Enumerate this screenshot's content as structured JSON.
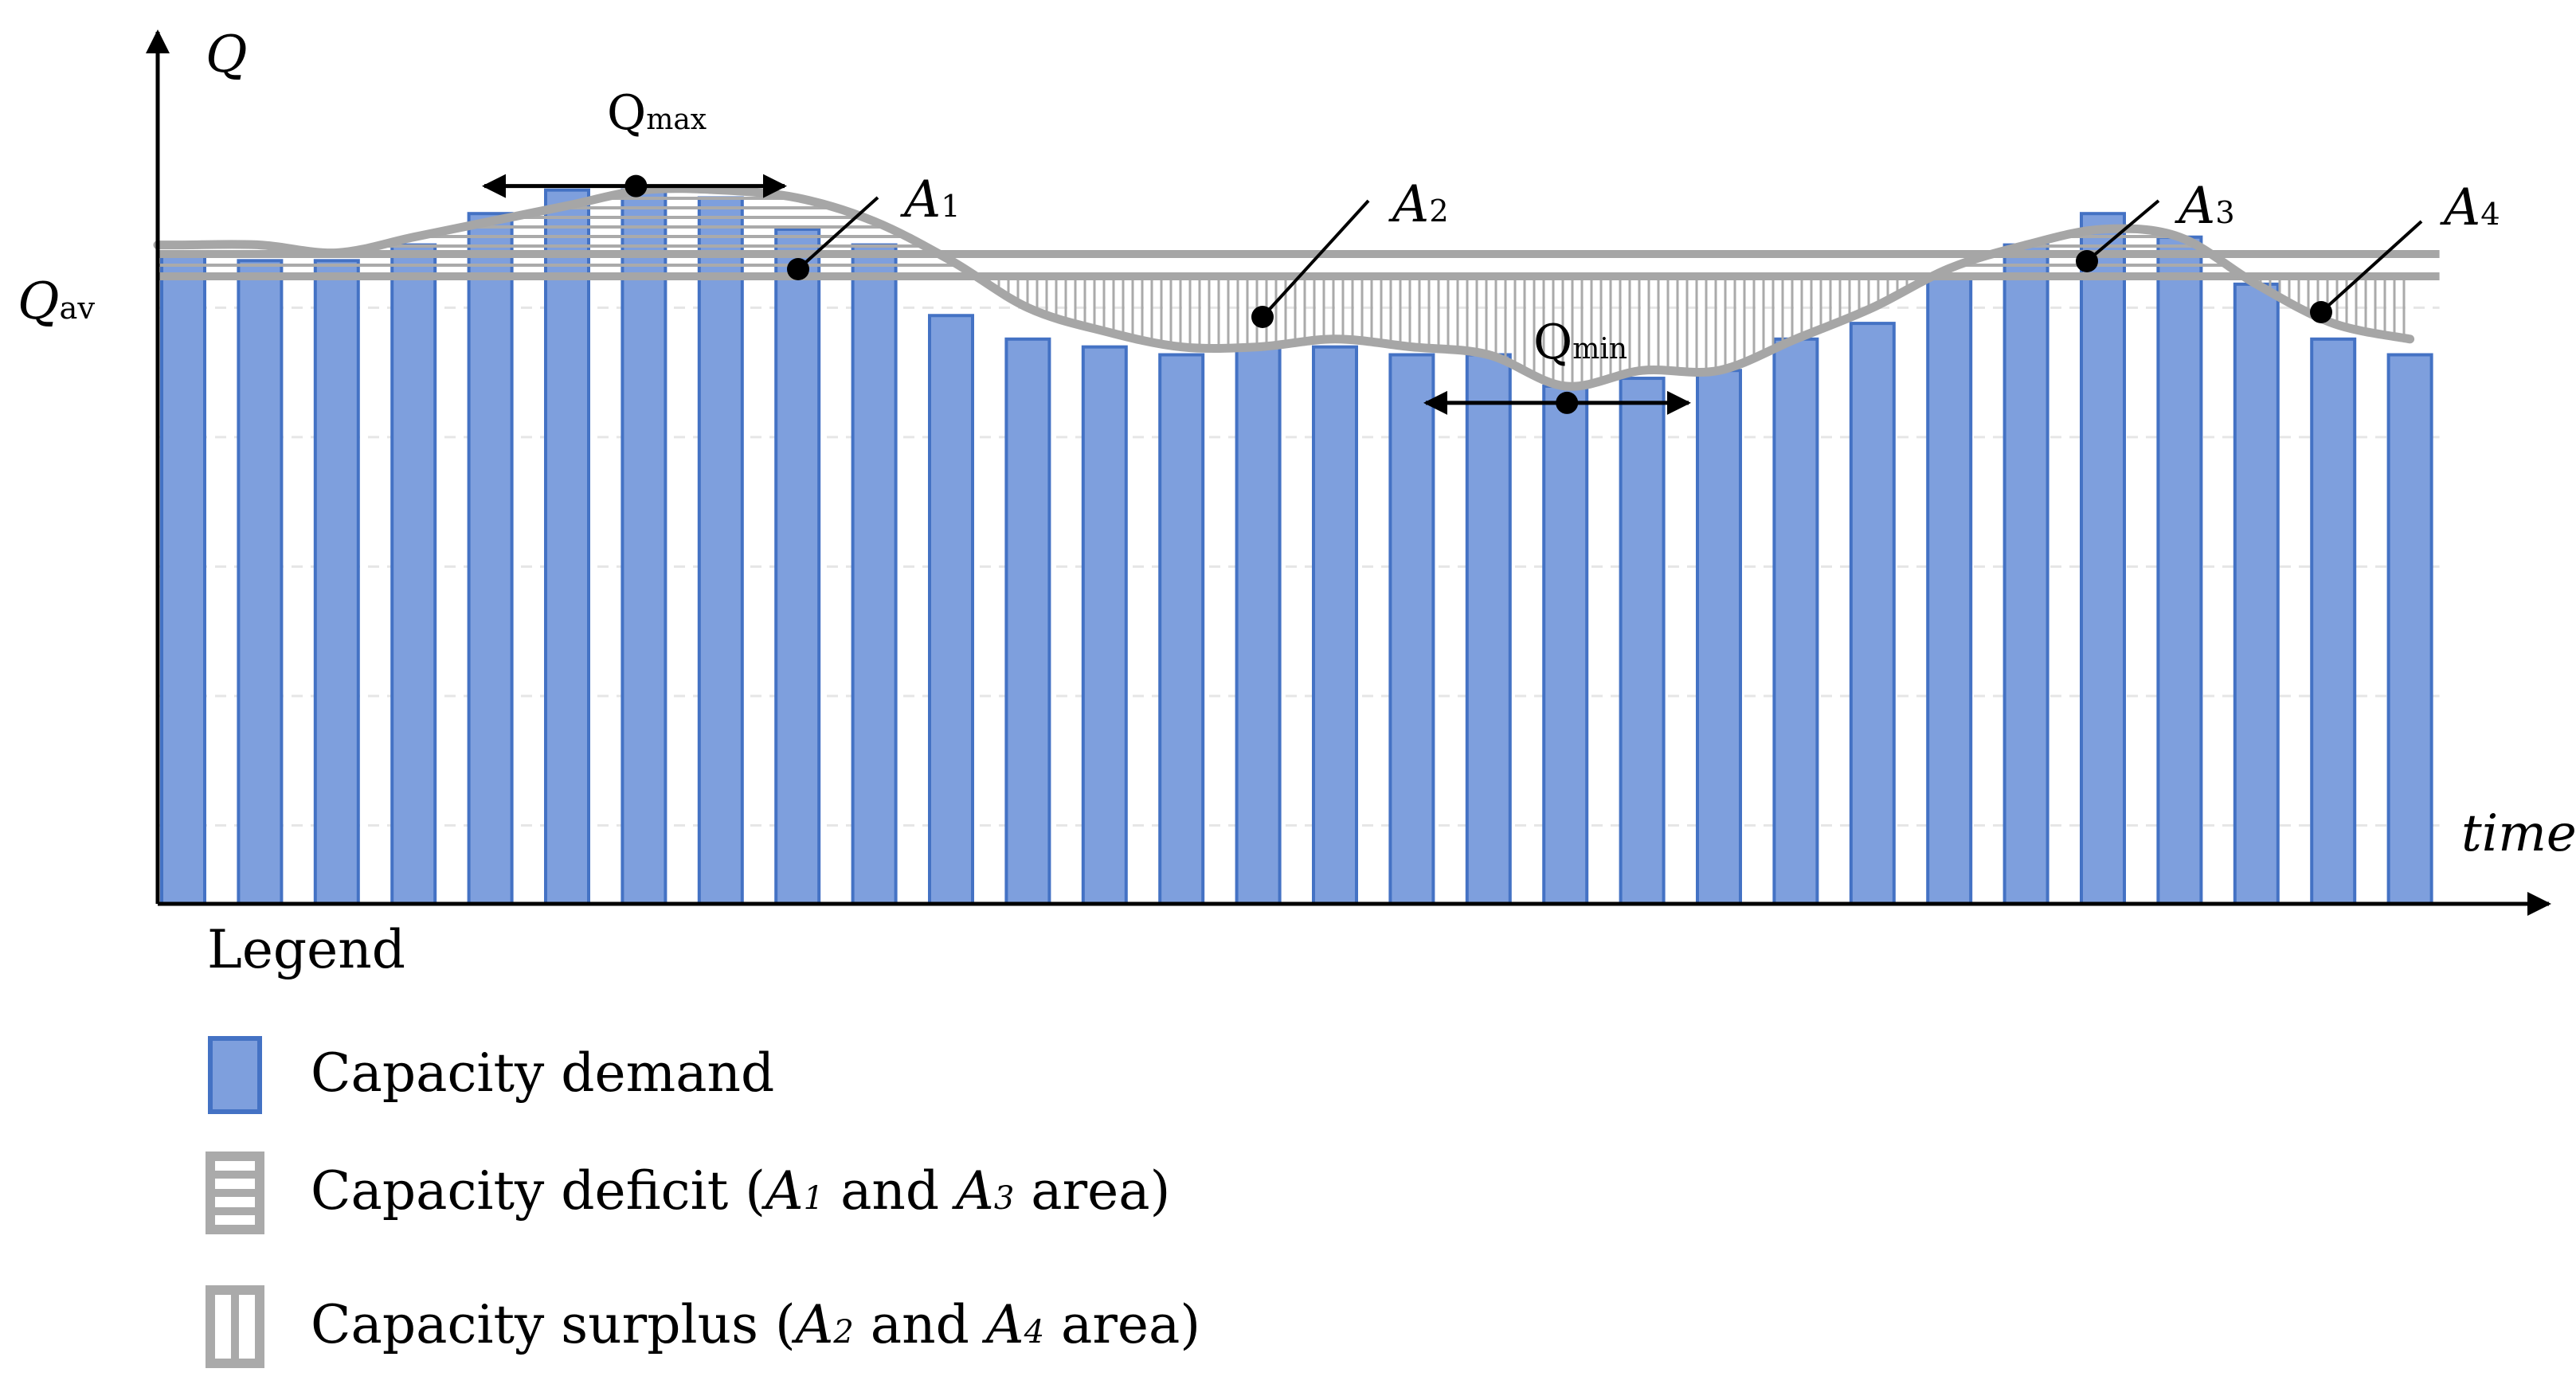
{
  "chart_data": {
    "type": "bar",
    "x_count": 30,
    "values": [
      83,
      82,
      82,
      84,
      88,
      91,
      91,
      90,
      86,
      84,
      75,
      72,
      71,
      70,
      71,
      71,
      70,
      70,
      66,
      67,
      68,
      72,
      74,
      80,
      84,
      88,
      85,
      79,
      72,
      70
    ],
    "demand_curve": [
      84,
      84,
      83,
      85,
      87,
      89,
      91,
      91,
      90,
      87,
      82,
      76,
      73,
      71,
      71,
      72,
      71,
      70,
      66,
      68,
      68,
      72,
      76,
      81,
      84,
      86,
      85,
      79,
      74,
      72
    ],
    "q_av": 80,
    "ylim": [
      0,
      100
    ],
    "axis": {
      "y_label": "Q",
      "x_label": "time"
    },
    "annotations": {
      "q_av": {
        "base": "Q",
        "sub": "av"
      },
      "q_max": {
        "base": "Q",
        "sub": "max",
        "value": 91
      },
      "q_min": {
        "base": "Q",
        "sub": "min",
        "value": 66
      },
      "areas": [
        {
          "base": "A",
          "sub": "1",
          "type": "deficit"
        },
        {
          "base": "A",
          "sub": "2",
          "type": "surplus"
        },
        {
          "base": "A",
          "sub": "3",
          "type": "deficit"
        },
        {
          "base": "A",
          "sub": "4",
          "type": "surplus"
        }
      ]
    },
    "legend": {
      "title": "Legend",
      "entries": [
        {
          "kind": "demand",
          "text": "Capacity demand",
          "parts": []
        },
        {
          "kind": "deficit",
          "text": "Capacity deficit (",
          "parts": [
            {
              "base": "A",
              "sub": "1"
            },
            {
              "mid": " and "
            },
            {
              "base": "A",
              "sub": "3"
            }
          ],
          "tail": " area)"
        },
        {
          "kind": "surplus",
          "text": "Capacity surplus (",
          "parts": [
            {
              "base": "A",
              "sub": "2"
            },
            {
              "mid": " and "
            },
            {
              "base": "A",
              "sub": "4"
            }
          ],
          "tail": " area)"
        }
      ]
    },
    "colors": {
      "bar_fill": "#7e9fdd",
      "bar_stroke": "#4472c4",
      "curve": "#a6a6a6",
      "hatch": "#aaaaaa",
      "grid": "#e6e6e6",
      "axis": "#000000"
    }
  }
}
